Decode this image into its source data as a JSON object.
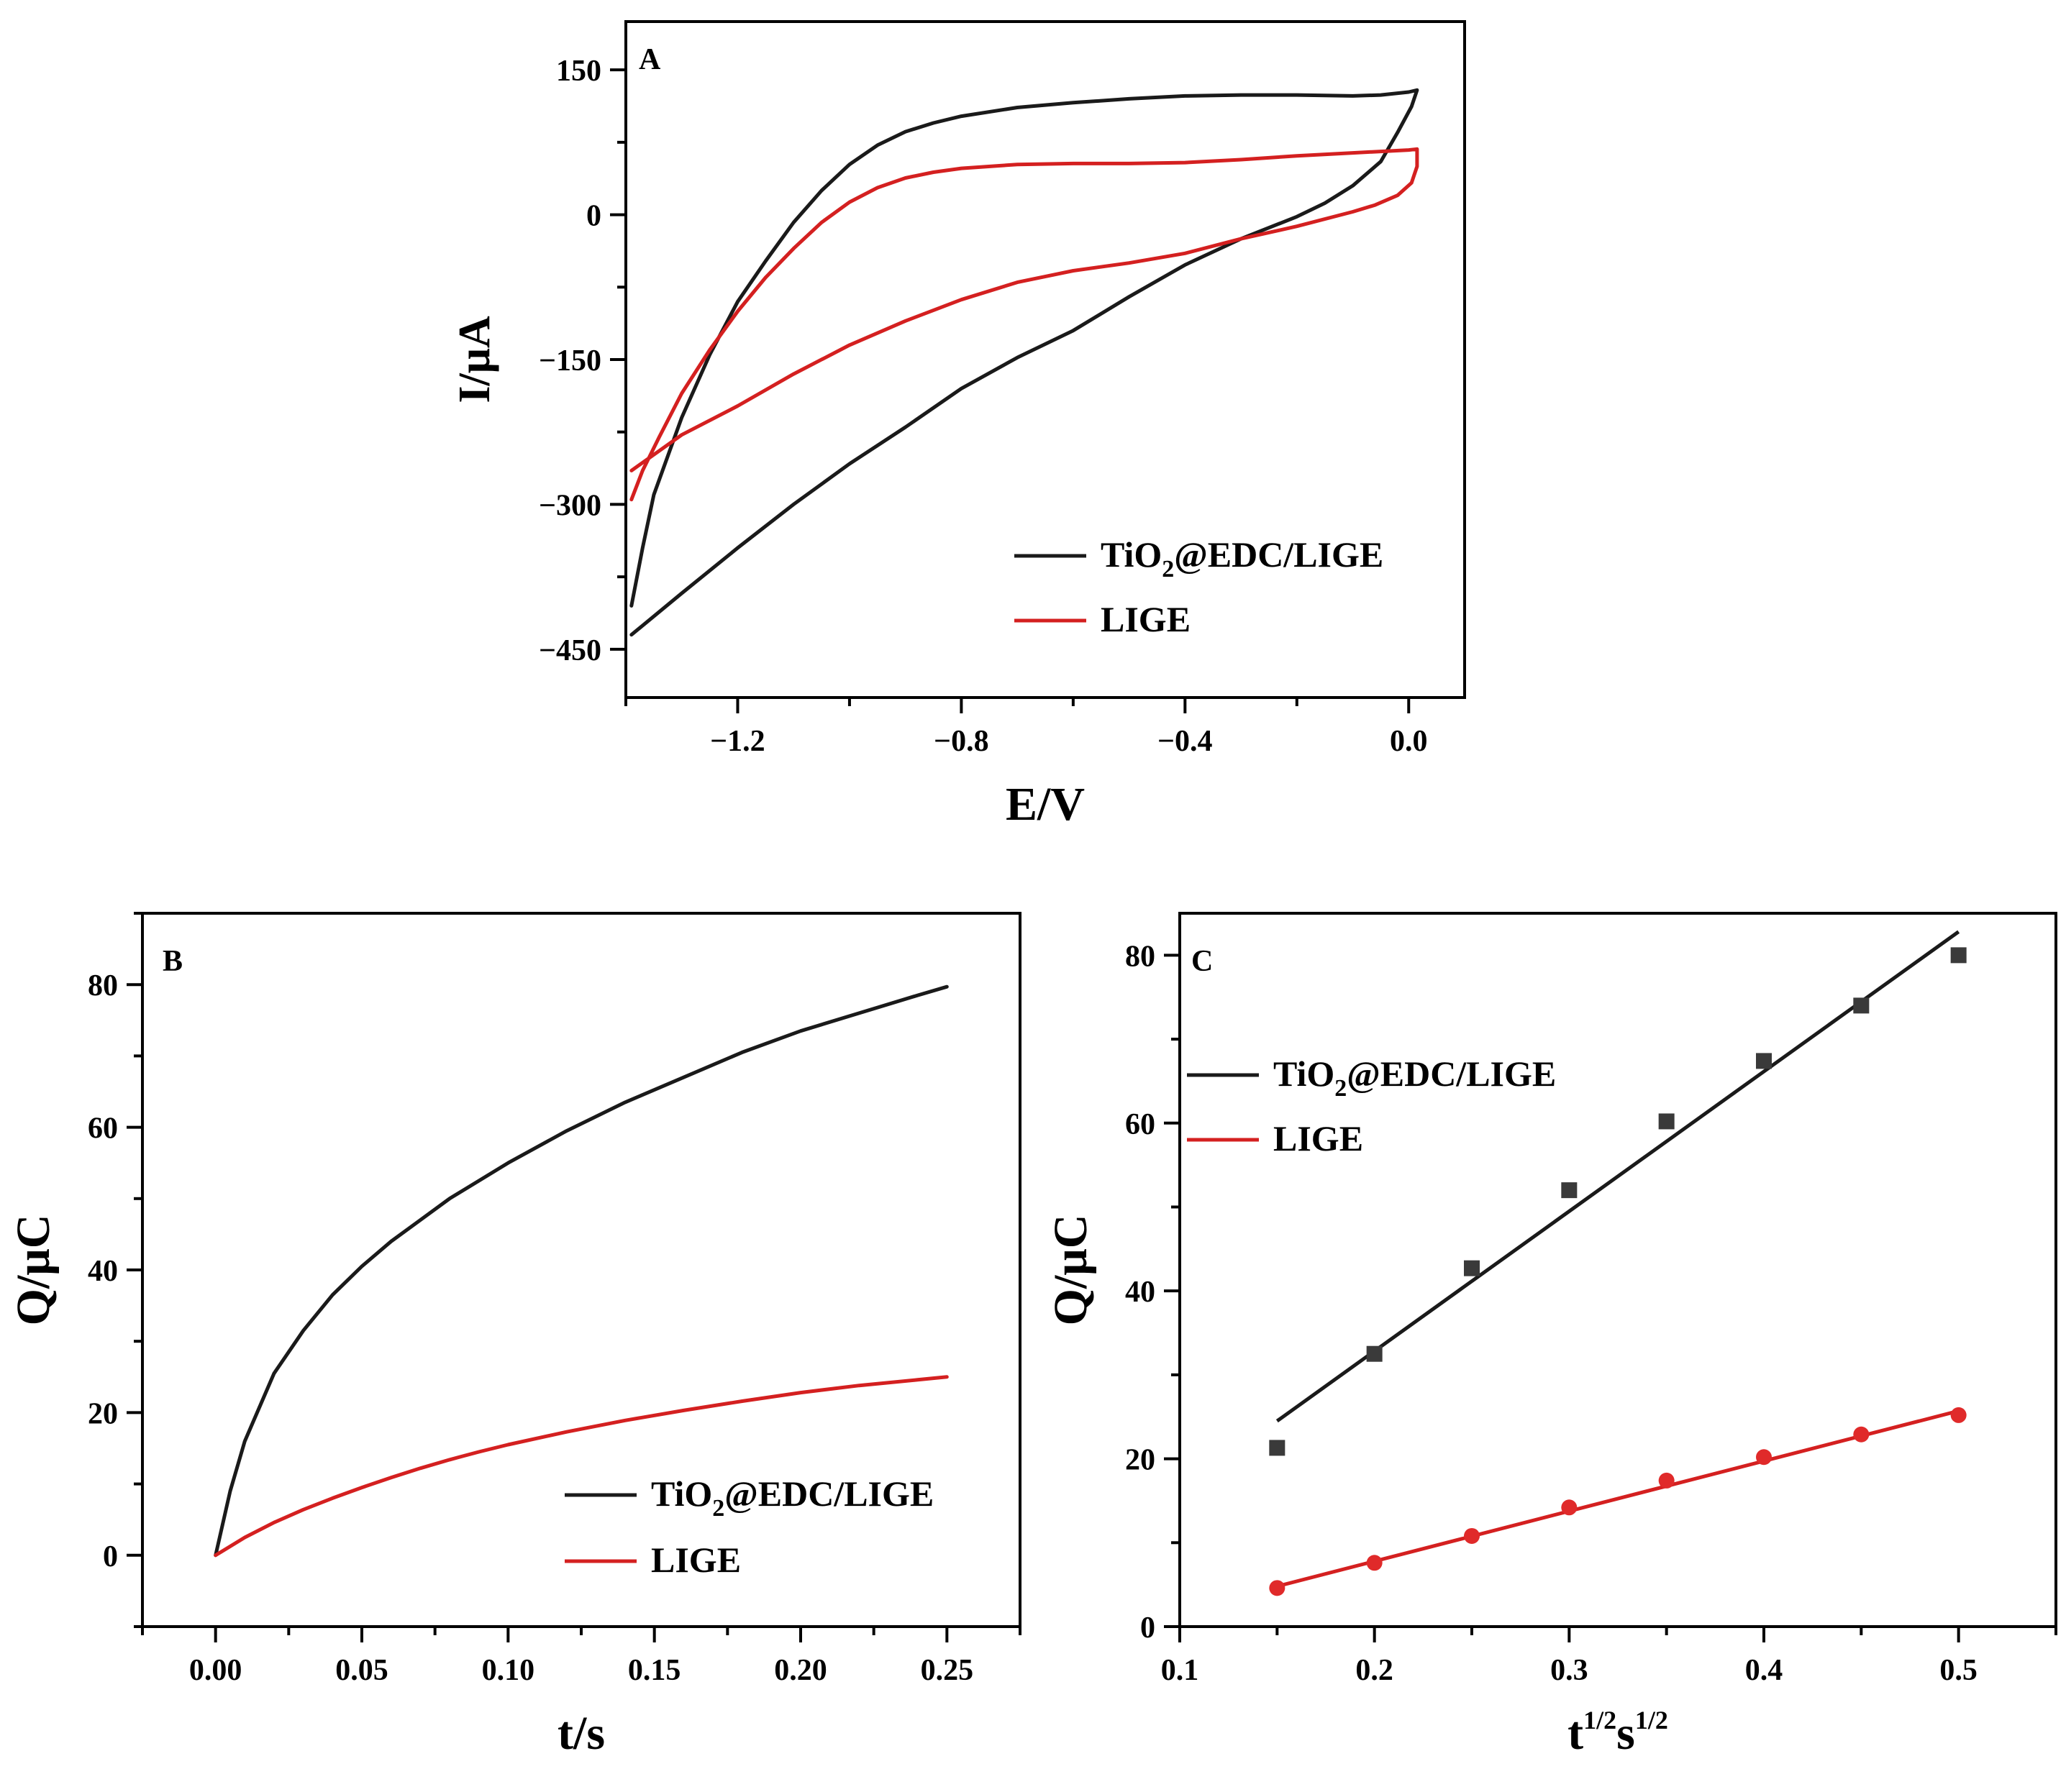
{
  "chart_data": [
    {
      "panel": "A",
      "type": "line",
      "xlabel": "E/V",
      "ylabel": "I/μA",
      "xlim": [
        -1.4,
        0.1
      ],
      "ylim": [
        -500,
        200
      ],
      "xticks": [
        -1.2,
        -0.8,
        -0.4,
        0.0
      ],
      "xtick_labels": [
        "−1.2",
        "−0.8",
        "−0.4",
        "0.0"
      ],
      "yticks": [
        150,
        0,
        -150,
        -300,
        -450
      ],
      "ytick_labels": [
        "150",
        "0",
        "−150",
        "−300",
        "−450"
      ],
      "legend": {
        "position": "bottom-right",
        "entries": [
          {
            "name": "TiO",
            "sub": "2",
            "rest": "@EDC/LIGE",
            "color": "#1a1a1a"
          },
          {
            "name": "LIGE",
            "sub": "",
            "rest": "",
            "color": "#d42020"
          }
        ]
      },
      "series": [
        {
          "name": "TiO2@EDC/LIGE",
          "color": "#1a1a1a",
          "points": [
            [
              -1.39,
              -405
            ],
            [
              -1.37,
              -345
            ],
            [
              -1.35,
              -290
            ],
            [
              -1.3,
              -210
            ],
            [
              -1.25,
              -145
            ],
            [
              -1.2,
              -90
            ],
            [
              -1.15,
              -48
            ],
            [
              -1.1,
              -8
            ],
            [
              -1.05,
              25
            ],
            [
              -1.0,
              52
            ],
            [
              -0.95,
              72
            ],
            [
              -0.9,
              86
            ],
            [
              -0.85,
              95
            ],
            [
              -0.8,
              102
            ],
            [
              -0.7,
              111
            ],
            [
              -0.6,
              116
            ],
            [
              -0.5,
              120
            ],
            [
              -0.4,
              123
            ],
            [
              -0.3,
              124
            ],
            [
              -0.2,
              124
            ],
            [
              -0.1,
              123
            ],
            [
              -0.05,
              124
            ],
            [
              0.0,
              127
            ],
            [
              0.015,
              129
            ],
            [
              0.005,
              112
            ],
            [
              -0.02,
              85
            ],
            [
              -0.05,
              55
            ],
            [
              -0.1,
              30
            ],
            [
              -0.15,
              12
            ],
            [
              -0.2,
              -2
            ],
            [
              -0.3,
              -25
            ],
            [
              -0.4,
              -52
            ],
            [
              -0.5,
              -85
            ],
            [
              -0.6,
              -120
            ],
            [
              -0.7,
              -148
            ],
            [
              -0.8,
              -180
            ],
            [
              -0.9,
              -220
            ],
            [
              -1.0,
              -258
            ],
            [
              -1.1,
              -300
            ],
            [
              -1.2,
              -345
            ],
            [
              -1.3,
              -392
            ],
            [
              -1.39,
              -435
            ]
          ]
        },
        {
          "name": "LIGE",
          "color": "#d42020",
          "points": [
            [
              -1.39,
              -295
            ],
            [
              -1.37,
              -265
            ],
            [
              -1.34,
              -230
            ],
            [
              -1.3,
              -185
            ],
            [
              -1.25,
              -140
            ],
            [
              -1.2,
              -100
            ],
            [
              -1.15,
              -65
            ],
            [
              -1.1,
              -35
            ],
            [
              -1.05,
              -8
            ],
            [
              -1.0,
              13
            ],
            [
              -0.95,
              28
            ],
            [
              -0.9,
              38
            ],
            [
              -0.85,
              44
            ],
            [
              -0.8,
              48
            ],
            [
              -0.7,
              52
            ],
            [
              -0.6,
              53
            ],
            [
              -0.5,
              53
            ],
            [
              -0.4,
              54
            ],
            [
              -0.3,
              57
            ],
            [
              -0.2,
              61
            ],
            [
              -0.1,
              64
            ],
            [
              0.0,
              67
            ],
            [
              0.015,
              68
            ],
            [
              0.015,
              50
            ],
            [
              0.005,
              33
            ],
            [
              -0.02,
              20
            ],
            [
              -0.06,
              10
            ],
            [
              -0.1,
              3
            ],
            [
              -0.2,
              -12
            ],
            [
              -0.3,
              -25
            ],
            [
              -0.4,
              -40
            ],
            [
              -0.5,
              -50
            ],
            [
              -0.6,
              -58
            ],
            [
              -0.7,
              -70
            ],
            [
              -0.8,
              -88
            ],
            [
              -0.9,
              -110
            ],
            [
              -1.0,
              -135
            ],
            [
              -1.1,
              -165
            ],
            [
              -1.2,
              -198
            ],
            [
              -1.3,
              -228
            ],
            [
              -1.39,
              -265
            ]
          ]
        }
      ]
    },
    {
      "panel": "B",
      "type": "line",
      "xlabel": "t/s",
      "ylabel": "Q/μC",
      "xlim": [
        -0.025,
        0.275
      ],
      "ylim": [
        -10,
        90
      ],
      "xticks": [
        0.0,
        0.05,
        0.1,
        0.15,
        0.2,
        0.25
      ],
      "xtick_labels": [
        "0.00",
        "0.05",
        "0.10",
        "0.15",
        "0.20",
        "0.25"
      ],
      "yticks": [
        0,
        20,
        40,
        60,
        80
      ],
      "ytick_labels": [
        "0",
        "20",
        "40",
        "60",
        "80"
      ],
      "legend": {
        "position": "bottom-right",
        "entries": [
          {
            "name": "TiO",
            "sub": "2",
            "rest": "@EDC/LIGE",
            "color": "#1a1a1a"
          },
          {
            "name": "LIGE",
            "sub": "",
            "rest": "",
            "color": "#d42020"
          }
        ]
      },
      "series": [
        {
          "name": "TiO2@EDC/LIGE",
          "color": "#1a1a1a",
          "points": [
            [
              0.0,
              0.0
            ],
            [
              0.005,
              9.0
            ],
            [
              0.01,
              16.0
            ],
            [
              0.02,
              25.5
            ],
            [
              0.03,
              31.5
            ],
            [
              0.04,
              36.5
            ],
            [
              0.05,
              40.5
            ],
            [
              0.06,
              44.0
            ],
            [
              0.07,
              47.0
            ],
            [
              0.08,
              50.0
            ],
            [
              0.09,
              52.5
            ],
            [
              0.1,
              55.0
            ],
            [
              0.12,
              59.5
            ],
            [
              0.14,
              63.5
            ],
            [
              0.16,
              67.0
            ],
            [
              0.18,
              70.5
            ],
            [
              0.2,
              73.5
            ],
            [
              0.22,
              76.0
            ],
            [
              0.24,
              78.5
            ],
            [
              0.25,
              79.7
            ]
          ]
        },
        {
          "name": "LIGE",
          "color": "#d42020",
          "points": [
            [
              0.0,
              0.0
            ],
            [
              0.01,
              2.5
            ],
            [
              0.02,
              4.6
            ],
            [
              0.03,
              6.4
            ],
            [
              0.04,
              8.0
            ],
            [
              0.05,
              9.5
            ],
            [
              0.06,
              10.9
            ],
            [
              0.07,
              12.2
            ],
            [
              0.08,
              13.4
            ],
            [
              0.09,
              14.5
            ],
            [
              0.1,
              15.5
            ],
            [
              0.12,
              17.3
            ],
            [
              0.14,
              18.9
            ],
            [
              0.16,
              20.3
            ],
            [
              0.18,
              21.6
            ],
            [
              0.2,
              22.8
            ],
            [
              0.22,
              23.8
            ],
            [
              0.24,
              24.6
            ],
            [
              0.25,
              25.0
            ]
          ]
        }
      ]
    },
    {
      "panel": "C",
      "type": "scatter",
      "xlabel_base": "t",
      "xlabel_sup1": "1/2",
      "xlabel_mid": "s",
      "xlabel_sup2": "1/2",
      "ylabel": "Q/μC",
      "xlim": [
        0.1,
        0.55
      ],
      "ylim": [
        0,
        85
      ],
      "xticks": [
        0.1,
        0.2,
        0.3,
        0.4,
        0.5
      ],
      "xtick_labels": [
        "0.1",
        "0.2",
        "0.3",
        "0.4",
        "0.5"
      ],
      "yticks": [
        0,
        20,
        40,
        60,
        80
      ],
      "ytick_labels": [
        "0",
        "20",
        "40",
        "60",
        "80"
      ],
      "legend": {
        "position": "top-left",
        "entries": [
          {
            "name": "TiO",
            "sub": "2",
            "rest": "@EDC/LIGE",
            "color": "#1a1a1a"
          },
          {
            "name": "LIGE",
            "sub": "",
            "rest": "",
            "color": "#d42020"
          }
        ]
      },
      "series": [
        {
          "name": "TiO2@EDC/LIGE",
          "color": "#1a1a1a",
          "marker": "square",
          "x": [
            0.15,
            0.2,
            0.25,
            0.3,
            0.35,
            0.4,
            0.45,
            0.5
          ],
          "y": [
            21.3,
            32.5,
            42.7,
            52.0,
            60.2,
            67.4,
            74.0,
            80.0
          ],
          "fit": [
            [
              0.15,
              24.5
            ],
            [
              0.5,
              82.8
            ]
          ]
        },
        {
          "name": "LIGE",
          "color": "#d42020",
          "marker": "circle",
          "x": [
            0.15,
            0.2,
            0.25,
            0.3,
            0.35,
            0.4,
            0.45,
            0.5
          ],
          "y": [
            4.6,
            7.6,
            10.8,
            14.2,
            17.4,
            20.2,
            22.9,
            25.2
          ],
          "fit": [
            [
              0.15,
              4.8
            ],
            [
              0.5,
              25.7
            ]
          ]
        }
      ]
    }
  ]
}
